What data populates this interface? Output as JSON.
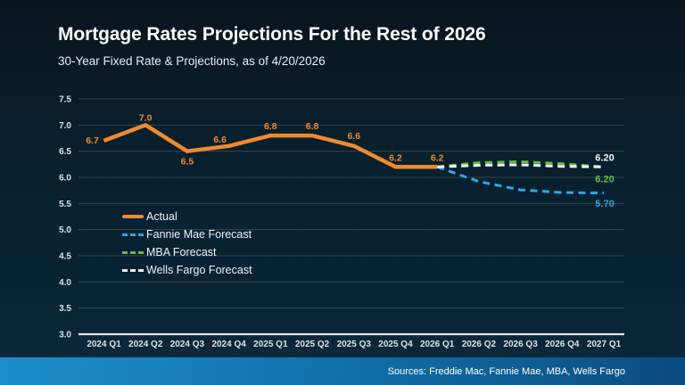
{
  "header": {
    "title": "Mortgage Rates Projections For the Rest of 2026",
    "subtitle": "30-Year Fixed Rate & Projections, as of 4/20/2026"
  },
  "footer": {
    "sources": "Sources: Freddie Mac, Fannie Mae, MBA, Wells Fargo"
  },
  "colors": {
    "background_top": "#0a141c",
    "background_bottom": "#0b2a3c",
    "gridline": "#35444f",
    "axis_line": "#e6eaec",
    "tick_label": "#dbe2e7",
    "actual": "#ee8a31",
    "fannie_mae": "#2aa7e1",
    "mba": "#66bd41",
    "wells_fargo": "#f2f4f6",
    "sources_bar_left": "#1e8ecb",
    "sources_bar_right": "#0a4c80"
  },
  "chart_data": {
    "type": "line",
    "title": "Mortgage Rates Projections For the Rest of 2026",
    "subtitle": "30-Year Fixed Rate & Projections, as of 4/20/2026",
    "categories": [
      "2024 Q1",
      "2024 Q2",
      "2024 Q3",
      "2024 Q4",
      "2025 Q1",
      "2025 Q2",
      "2025 Q3",
      "2025 Q4",
      "2026 Q1",
      "2026 Q2",
      "2026 Q3",
      "2026 Q4",
      "2027 Q1"
    ],
    "ylim": [
      3.0,
      7.5
    ],
    "yticks": [
      7.5,
      7.0,
      6.5,
      6.0,
      5.5,
      5.0,
      4.5,
      4.0,
      3.5,
      3.0
    ],
    "grid": true,
    "legend_position": "inside-left",
    "series": [
      {
        "name": "Actual",
        "color": "#ee8a31",
        "dash": false,
        "values": [
          6.7,
          7.0,
          6.5,
          6.6,
          6.8,
          6.8,
          6.6,
          6.2,
          6.2,
          null,
          null,
          null,
          null
        ],
        "point_labels": [
          "6.7",
          "7.0",
          "6.5",
          "6.6",
          "6.8",
          "6.8",
          "6.6",
          "6.2",
          "6.2"
        ]
      },
      {
        "name": "Fannie Mae Forecast",
        "color": "#2aa7e1",
        "dash": true,
        "values": [
          null,
          null,
          null,
          null,
          null,
          null,
          null,
          null,
          6.2,
          5.92,
          5.76,
          5.71,
          5.7
        ],
        "end_label": "5.70"
      },
      {
        "name": "MBA Forecast",
        "color": "#66bd41",
        "dash": true,
        "values": [
          null,
          null,
          null,
          null,
          null,
          null,
          null,
          null,
          6.2,
          6.28,
          6.3,
          6.26,
          6.2
        ],
        "end_label": "6.20"
      },
      {
        "name": "Wells Fargo Forecast",
        "color": "#f2f4f6",
        "dash": true,
        "values": [
          null,
          null,
          null,
          null,
          null,
          null,
          null,
          null,
          6.2,
          6.23,
          6.24,
          6.21,
          6.2
        ],
        "end_label": "6.20"
      }
    ]
  }
}
